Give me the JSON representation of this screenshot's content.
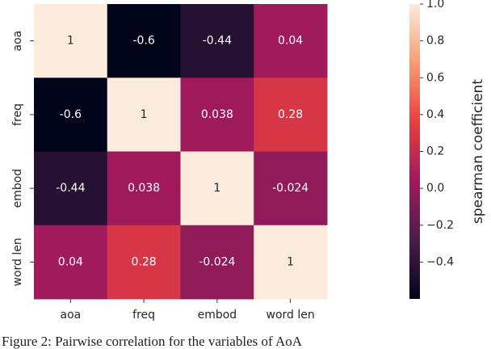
{
  "chart_data": {
    "type": "heatmap",
    "x_categories": [
      "aoa",
      "freq",
      "embod",
      "word len"
    ],
    "y_categories": [
      "aoa",
      "freq",
      "embod",
      "word len"
    ],
    "values": [
      [
        1,
        -0.6,
        -0.44,
        0.04
      ],
      [
        -0.6,
        1,
        0.038,
        0.28
      ],
      [
        -0.44,
        0.038,
        1,
        -0.024
      ],
      [
        0.04,
        0.28,
        -0.024,
        1
      ]
    ],
    "colorbar_label": "spearman coefficient",
    "clim": [
      -0.6,
      1
    ],
    "cticks": [
      {
        "value": 1,
        "label": "1.0"
      },
      0.8,
      0.6,
      0.4,
      0.2,
      {
        "value": 0,
        "label": "0.0"
      },
      {
        "value": -0.2,
        "label": "−0.2"
      },
      {
        "value": -0.4,
        "label": "−0.4"
      }
    ],
    "colormap": [
      "#03051a",
      "#4c1d4b",
      "#a11a5b",
      "#e83f3f",
      "#f69c73",
      "#faebdd"
    ],
    "caption": "Figure 2: Pairwise correlation for the variables of AoA"
  }
}
